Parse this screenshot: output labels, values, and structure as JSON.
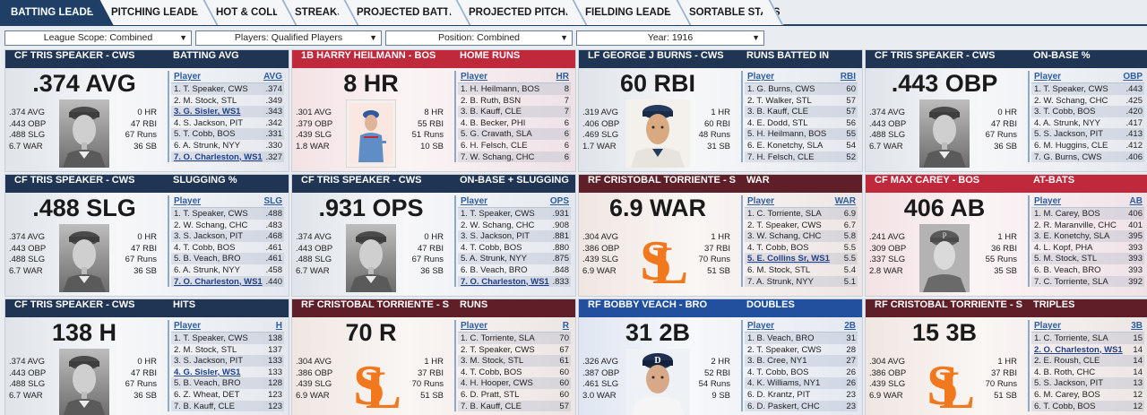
{
  "tabs": [
    "BATTING LEADERS",
    "PITCHING LEADERS",
    "HOT & COLD",
    "STREAKS",
    "PROJECTED BATTING",
    "PROJECTED PITCHING",
    "FIELDING LEADERS",
    "SORTABLE STATS"
  ],
  "filters": {
    "league_scope": "League Scope: Combined",
    "players": "Players: Qualified Players",
    "position": "Position: Combined",
    "year": "Year: 1916"
  },
  "colors": {
    "cws": "#1f3553",
    "bos": "#c0283c",
    "sla": "#5e1f28",
    "bro": "#23509e",
    "tab_active": "#1f3f66",
    "link": "#2b5d9e"
  },
  "cards": [
    {
      "team": "cws",
      "photo": "portrait",
      "player": "CF TRIS SPEAKER - CWS",
      "stat_title": "BATTING AVG",
      "lead": ".374 AVG",
      "left": [
        ".374 AVG",
        ".443 OBP",
        ".488 SLG",
        "6.7 WAR"
      ],
      "right": [
        "0 HR",
        "47 RBI",
        "67 Runs",
        "36 SB"
      ],
      "col": "AVG",
      "rows": [
        [
          "1. T. Speaker, CWS",
          ".374"
        ],
        [
          "2. M. Stock, STL",
          ".349"
        ],
        [
          "3. G. Sisler, WS1",
          ".343"
        ],
        [
          "4. S. Jackson, PIT",
          ".342"
        ],
        [
          "5. T. Cobb, BOS",
          ".331"
        ],
        [
          "6. A. Strunk, NYY",
          ".330"
        ],
        [
          "7. O. Charleston, WS1",
          ".327"
        ]
      ],
      "hl": [
        2,
        6
      ]
    },
    {
      "team": "bos",
      "photo": "card",
      "player": "1B HARRY HEILMANN - BOS",
      "stat_title": "HOME RUNS",
      "lead": "8 HR",
      "left": [
        ".301 AVG",
        ".379 OBP",
        ".439 SLG",
        "1.8 WAR"
      ],
      "right": [
        "8 HR",
        "55 RBI",
        "51 Runs",
        "10 SB"
      ],
      "col": "HR",
      "rows": [
        [
          "1. H. Heilmann, BOS",
          "8"
        ],
        [
          "2. B. Ruth, BSN",
          "7"
        ],
        [
          "3. B. Kauff, CLE",
          "7"
        ],
        [
          "4. B. Becker, PHI",
          "6"
        ],
        [
          "5. G. Cravath, SLA",
          "6"
        ],
        [
          "6. H. Felsch, CLE",
          "6"
        ],
        [
          "7. W. Schang, CHC",
          "6"
        ]
      ],
      "hl": []
    },
    {
      "team": "ny1",
      "photo": "color",
      "player": "LF GEORGE J BURNS - CWS",
      "stat_title": "RUNS BATTED IN",
      "lead": "60 RBI",
      "left": [
        ".319 AVG",
        ".406 OBP",
        ".469 SLG",
        "1.7 WAR"
      ],
      "right": [
        "1 HR",
        "60 RBI",
        "48 Runs",
        "31 SB"
      ],
      "col": "RBI",
      "rows": [
        [
          "1. G. Burns, CWS",
          "60"
        ],
        [
          "2. T. Walker, STL",
          "57"
        ],
        [
          "3. B. Kauff, CLE",
          "57"
        ],
        [
          "4. E. Dodd, STL",
          "56"
        ],
        [
          "5. H. Heilmann, BOS",
          "55"
        ],
        [
          "6. E. Konetchy, SLA",
          "54"
        ],
        [
          "7. H. Felsch, CLE",
          "52"
        ]
      ],
      "hl": []
    },
    {
      "team": "cws",
      "photo": "portrait",
      "player": "CF TRIS SPEAKER - CWS",
      "stat_title": "ON-BASE %",
      "lead": ".443 OBP",
      "left": [
        ".374 AVG",
        ".443 OBP",
        ".488 SLG",
        "6.7 WAR"
      ],
      "right": [
        "0 HR",
        "47 RBI",
        "67 Runs",
        "36 SB"
      ],
      "col": "OBP",
      "rows": [
        [
          "1. T. Speaker, CWS",
          ".443"
        ],
        [
          "2. W. Schang, CHC",
          ".425"
        ],
        [
          "3. T. Cobb, BOS",
          ".420"
        ],
        [
          "4. A. Strunk, NYY",
          ".417"
        ],
        [
          "5. S. Jackson, PIT",
          ".413"
        ],
        [
          "6. M. Huggins, CLE",
          ".412"
        ],
        [
          "7. G. Burns, CWS",
          ".406"
        ]
      ],
      "hl": []
    },
    {
      "team": "cws",
      "photo": "portrait",
      "player": "CF TRIS SPEAKER - CWS",
      "stat_title": "SLUGGING %",
      "lead": ".488 SLG",
      "left": [
        ".374 AVG",
        ".443 OBP",
        ".488 SLG",
        "6.7 WAR"
      ],
      "right": [
        "0 HR",
        "47 RBI",
        "67 Runs",
        "36 SB"
      ],
      "col": "SLG",
      "rows": [
        [
          "1. T. Speaker, CWS",
          ".488"
        ],
        [
          "2. W. Schang, CHC",
          ".483"
        ],
        [
          "3. S. Jackson, PIT",
          ".468"
        ],
        [
          "4. T. Cobb, BOS",
          ".461"
        ],
        [
          "5. B. Veach, BRO",
          ".461"
        ],
        [
          "6. A. Strunk, NYY",
          ".458"
        ],
        [
          "7. O. Charleston, WS1",
          ".440"
        ]
      ],
      "hl": [
        6
      ]
    },
    {
      "team": "cws",
      "photo": "portrait",
      "player": "CF TRIS SPEAKER - CWS",
      "stat_title": "ON-BASE + SLUGGING",
      "lead": ".931 OPS",
      "left": [
        ".374 AVG",
        ".443 OBP",
        ".488 SLG",
        "6.7 WAR"
      ],
      "right": [
        "0 HR",
        "47 RBI",
        "67 Runs",
        "36 SB"
      ],
      "col": "OPS",
      "rows": [
        [
          "1. T. Speaker, CWS",
          ".931"
        ],
        [
          "2. W. Schang, CHC",
          ".908"
        ],
        [
          "3. S. Jackson, PIT",
          ".881"
        ],
        [
          "4. T. Cobb, BOS",
          ".880"
        ],
        [
          "5. A. Strunk, NYY",
          ".875"
        ],
        [
          "6. B. Veach, BRO",
          ".848"
        ],
        [
          "7. O. Charleston, WS1",
          ".833"
        ]
      ],
      "hl": [
        6
      ]
    },
    {
      "team": "sla",
      "photo": "logo",
      "player": "RF CRISTOBAL TORRIENTE - SLA",
      "stat_title": "WAR",
      "lead": "6.9 WAR",
      "left": [
        ".304 AVG",
        ".386 OBP",
        ".439 SLG",
        "6.9 WAR"
      ],
      "right": [
        "1 HR",
        "37 RBI",
        "70 Runs",
        "51 SB"
      ],
      "col": "WAR",
      "rows": [
        [
          "1. C. Torriente, SLA",
          "6.9"
        ],
        [
          "2. T. Speaker, CWS",
          "6.7"
        ],
        [
          "3. W. Schang, CHC",
          "5.8"
        ],
        [
          "4. T. Cobb, BOS",
          "5.5"
        ],
        [
          "5. E. Collins Sr, WS1",
          "5.5"
        ],
        [
          "6. M. Stock, STL",
          "5.4"
        ],
        [
          "7. A. Strunk, NYY",
          "5.1"
        ]
      ],
      "hl": [
        4
      ]
    },
    {
      "team": "bos",
      "photo": "portrait2",
      "player": "CF MAX CAREY - BOS",
      "stat_title": "AT-BATS",
      "lead": "406 AB",
      "left": [
        ".241 AVG",
        ".309 OBP",
        ".337 SLG",
        "2.8 WAR"
      ],
      "right": [
        "1 HR",
        "36 RBI",
        "55 Runs",
        "35 SB"
      ],
      "col": "AB",
      "rows": [
        [
          "1. M. Carey, BOS",
          "406"
        ],
        [
          "2. R. Maranville, CHC",
          "401"
        ],
        [
          "3. E. Konetchy, SLA",
          "395"
        ],
        [
          "4. L. Kopf, PHA",
          "393"
        ],
        [
          "5. M. Stock, STL",
          "393"
        ],
        [
          "6. B. Veach, BRO",
          "393"
        ],
        [
          "7. C. Torriente, SLA",
          "392"
        ]
      ],
      "hl": []
    },
    {
      "team": "cws",
      "photo": "portrait",
      "player": "CF TRIS SPEAKER - CWS",
      "stat_title": "HITS",
      "lead": "138 H",
      "left": [
        ".374 AVG",
        ".443 OBP",
        ".488 SLG",
        "6.7 WAR"
      ],
      "right": [
        "0 HR",
        "47 RBI",
        "67 Runs",
        "36 SB"
      ],
      "col": "H",
      "rows": [
        [
          "1. T. Speaker, CWS",
          "138"
        ],
        [
          "2. M. Stock, STL",
          "137"
        ],
        [
          "3. S. Jackson, PIT",
          "133"
        ],
        [
          "4. G. Sisler, WS1",
          "133"
        ],
        [
          "5. B. Veach, BRO",
          "128"
        ],
        [
          "6. Z. Wheat, DET",
          "123"
        ],
        [
          "7. B. Kauff, CLE",
          "123"
        ]
      ],
      "hl": [
        3
      ]
    },
    {
      "team": "sla",
      "photo": "logo",
      "player": "RF CRISTOBAL TORRIENTE - SLA",
      "stat_title": "RUNS",
      "lead": "70 R",
      "left": [
        ".304 AVG",
        ".386 OBP",
        ".439 SLG",
        "6.9 WAR"
      ],
      "right": [
        "1 HR",
        "37 RBI",
        "70 Runs",
        "51 SB"
      ],
      "col": "R",
      "rows": [
        [
          "1. C. Torriente, SLA",
          "70"
        ],
        [
          "2. T. Speaker, CWS",
          "67"
        ],
        [
          "3. M. Stock, STL",
          "61"
        ],
        [
          "4. T. Cobb, BOS",
          "60"
        ],
        [
          "4. H. Hooper, CWS",
          "60"
        ],
        [
          "6. D. Pratt, STL",
          "60"
        ],
        [
          "7. B. Kauff, CLE",
          "57"
        ]
      ],
      "hl": []
    },
    {
      "team": "bro",
      "photo": "color2",
      "player": "RF BOBBY VEACH - BRO",
      "stat_title": "DOUBLES",
      "lead": "31 2B",
      "left": [
        ".326 AVG",
        ".387 OBP",
        ".461 SLG",
        "3.0 WAR"
      ],
      "right": [
        "2 HR",
        "52 RBI",
        "54 Runs",
        "9 SB"
      ],
      "col": "2B",
      "rows": [
        [
          "1. B. Veach, BRO",
          "31"
        ],
        [
          "2. T. Speaker, CWS",
          "28"
        ],
        [
          "3. B. Cree, NY1",
          "27"
        ],
        [
          "4. T. Cobb, BOS",
          "26"
        ],
        [
          "4. K. Williams, NY1",
          "26"
        ],
        [
          "6. D. Krantz, PIT",
          "23"
        ],
        [
          "6. D. Paskert, CHC",
          "23"
        ]
      ],
      "hl": []
    },
    {
      "team": "sla",
      "photo": "logo",
      "player": "RF CRISTOBAL TORRIENTE - SLA",
      "stat_title": "TRIPLES",
      "lead": "15 3B",
      "left": [
        ".304 AVG",
        ".386 OBP",
        ".439 SLG",
        "6.9 WAR"
      ],
      "right": [
        "1 HR",
        "37 RBI",
        "70 Runs",
        "51 SB"
      ],
      "col": "3B",
      "rows": [
        [
          "1. C. Torriente, SLA",
          "15"
        ],
        [
          "2. O. Charleston, WS1",
          "14"
        ],
        [
          "2. E. Roush, CLE",
          "14"
        ],
        [
          "4. B. Roth, CHC",
          "14"
        ],
        [
          "5. S. Jackson, PIT",
          "13"
        ],
        [
          "6. M. Carey, BOS",
          "12"
        ],
        [
          "6. T. Cobb, BOS",
          "12"
        ]
      ],
      "hl": [
        1
      ]
    }
  ],
  "list_header_label": "Player"
}
